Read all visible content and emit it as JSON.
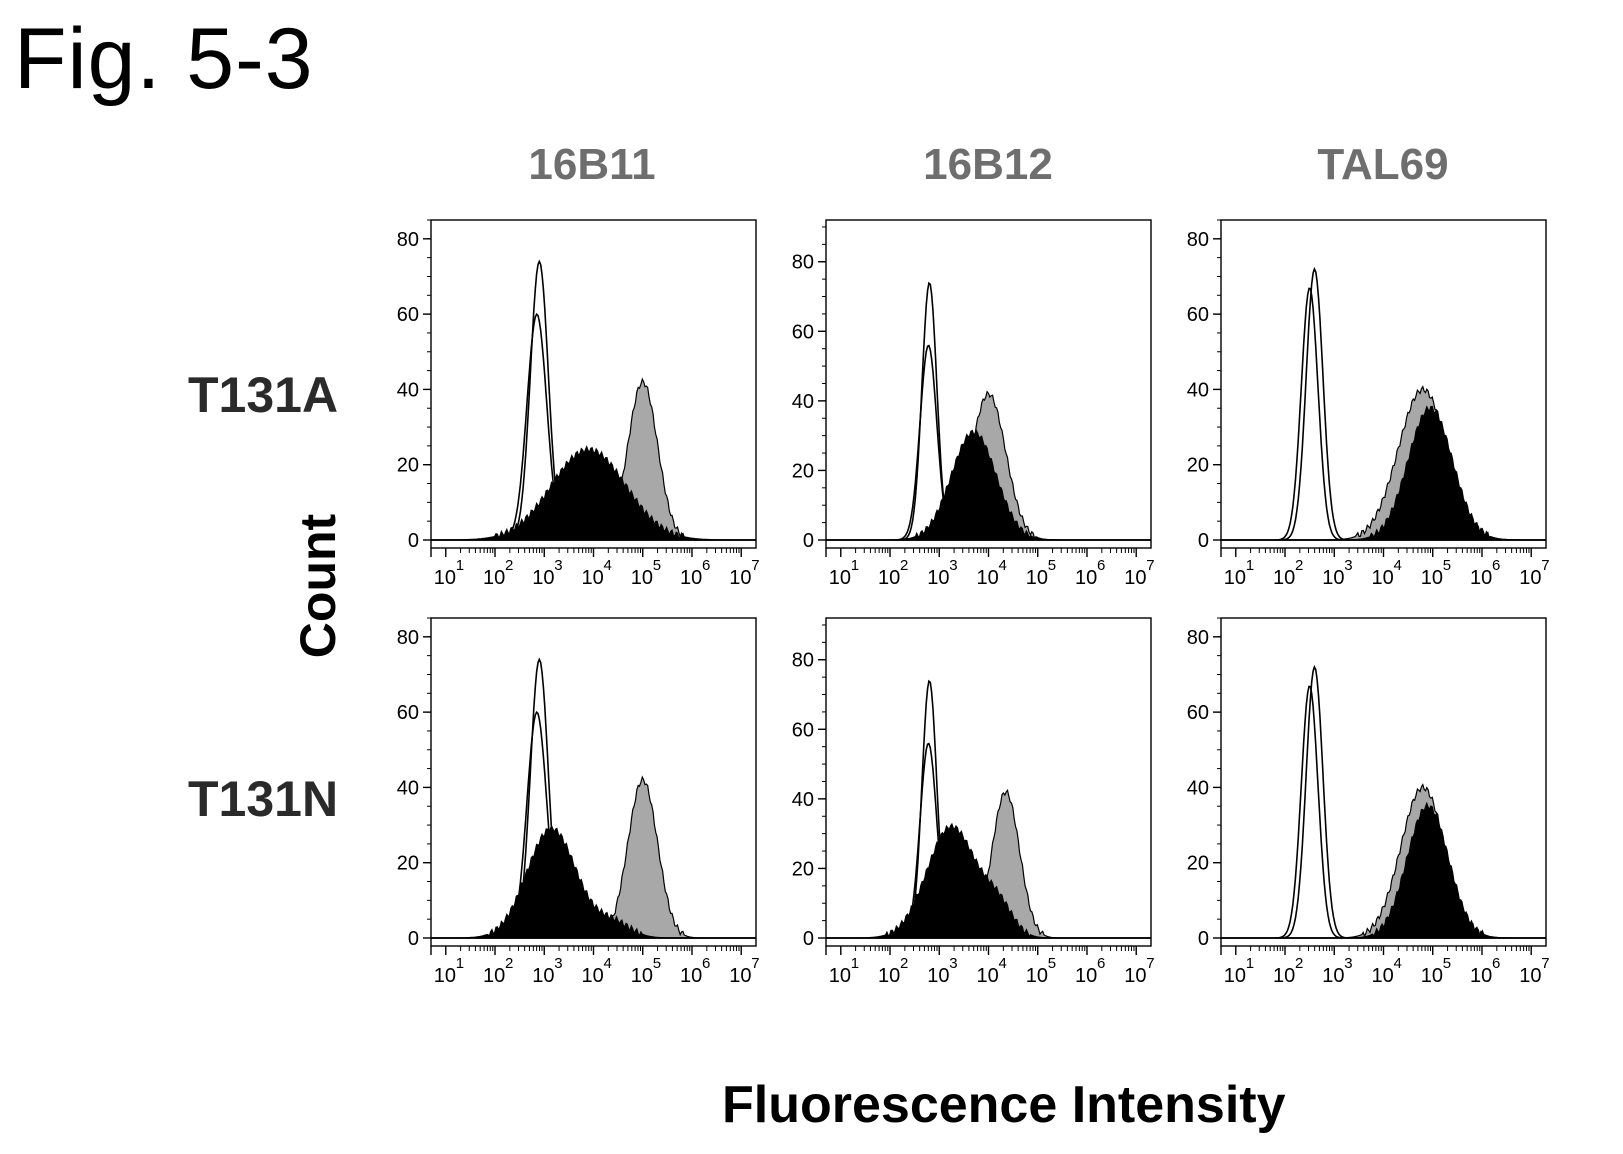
{
  "figure": {
    "title": "Fig. 5-3",
    "x_axis_title": "Fluorescence Intensity",
    "y_axis_title": "Count",
    "column_labels": [
      "16B11",
      "16B12",
      "TAL69"
    ],
    "row_labels": [
      "T131A",
      "T131N"
    ]
  },
  "colors": {
    "outline": "#000000",
    "gray_fill": "#a8a8a8",
    "black_fill": "#000000",
    "header_gray": "#6e6e6e"
  },
  "chart_data": [
    {
      "type": "area",
      "column": "16B11",
      "row": "T131A",
      "xscale": "log",
      "xlim_log10": [
        0.7,
        7.3
      ],
      "ylim": [
        0,
        85
      ],
      "xtick_exponents": [
        "1",
        "2",
        "3",
        "4",
        "5",
        "6",
        "7"
      ],
      "ytick_labels": [
        "0",
        "20",
        "40",
        "60",
        "80"
      ],
      "series": [
        {
          "fill": "none",
          "peaks": [
            [
              2.9,
              74,
              0.18
            ]
          ]
        },
        {
          "fill": "none",
          "peaks": [
            [
              2.85,
              60,
              0.2
            ]
          ]
        },
        {
          "fill": "gray",
          "peaks": [
            [
              5.0,
              42,
              0.3
            ]
          ]
        },
        {
          "fill": "black",
          "peaks": [
            [
              3.9,
              24,
              0.75
            ]
          ]
        }
      ]
    },
    {
      "type": "area",
      "column": "16B12",
      "row": "T131A",
      "xscale": "log",
      "xlim_log10": [
        0.7,
        7.3
      ],
      "ylim": [
        0,
        92
      ],
      "xtick_exponents": [
        "1",
        "2",
        "3",
        "4",
        "5",
        "6",
        "7"
      ],
      "ytick_labels": [
        "0",
        "20",
        "40",
        "60",
        "80"
      ],
      "series": [
        {
          "fill": "none",
          "peaks": [
            [
              2.8,
              74,
              0.15
            ]
          ]
        },
        {
          "fill": "none",
          "peaks": [
            [
              2.78,
              56,
              0.17
            ]
          ]
        },
        {
          "fill": "gray",
          "peaks": [
            [
              4.0,
              42,
              0.35
            ]
          ]
        },
        {
          "fill": "black",
          "peaks": [
            [
              3.7,
              31,
              0.45
            ]
          ]
        }
      ]
    },
    {
      "type": "area",
      "column": "TAL69",
      "row": "T131A",
      "xscale": "log",
      "xlim_log10": [
        0.7,
        7.3
      ],
      "ylim": [
        0,
        85
      ],
      "xtick_exponents": [
        "1",
        "2",
        "3",
        "4",
        "5",
        "6",
        "7"
      ],
      "ytick_labels": [
        "0",
        "20",
        "40",
        "60",
        "80"
      ],
      "series": [
        {
          "fill": "none",
          "peaks": [
            [
              2.6,
              72,
              0.17
            ]
          ]
        },
        {
          "fill": "none",
          "peaks": [
            [
              2.5,
              67,
              0.17
            ]
          ]
        },
        {
          "fill": "gray",
          "peaks": [
            [
              4.8,
              40,
              0.5
            ]
          ]
        },
        {
          "fill": "black",
          "peaks": [
            [
              4.95,
              35,
              0.45
            ]
          ]
        }
      ]
    },
    {
      "type": "area",
      "column": "16B11",
      "row": "T131N",
      "xscale": "log",
      "xlim_log10": [
        0.7,
        7.3
      ],
      "ylim": [
        0,
        85
      ],
      "xtick_exponents": [
        "1",
        "2",
        "3",
        "4",
        "5",
        "6",
        "7"
      ],
      "ytick_labels": [
        "0",
        "20",
        "40",
        "60",
        "80"
      ],
      "series": [
        {
          "fill": "none",
          "peaks": [
            [
              2.9,
              74,
              0.18
            ]
          ]
        },
        {
          "fill": "none",
          "peaks": [
            [
              2.85,
              60,
              0.2
            ]
          ]
        },
        {
          "fill": "gray",
          "peaks": [
            [
              5.0,
              42,
              0.3
            ]
          ]
        },
        {
          "fill": "black",
          "peaks": [
            [
              3.15,
              29,
              0.5
            ],
            [
              4.4,
              4,
              0.35
            ]
          ]
        }
      ]
    },
    {
      "type": "area",
      "column": "16B12",
      "row": "T131N",
      "xscale": "log",
      "xlim_log10": [
        0.7,
        7.3
      ],
      "ylim": [
        0,
        92
      ],
      "xtick_exponents": [
        "1",
        "2",
        "3",
        "4",
        "5",
        "6",
        "7"
      ],
      "ytick_labels": [
        "0",
        "20",
        "40",
        "60",
        "80"
      ],
      "series": [
        {
          "fill": "none",
          "peaks": [
            [
              2.8,
              74,
              0.15
            ]
          ]
        },
        {
          "fill": "none",
          "peaks": [
            [
              2.78,
              56,
              0.17
            ]
          ]
        },
        {
          "fill": "gray",
          "peaks": [
            [
              4.35,
              42,
              0.28
            ]
          ]
        },
        {
          "fill": "black",
          "peaks": [
            [
              3.25,
              32,
              0.5
            ],
            [
              4.2,
              8,
              0.3
            ]
          ]
        }
      ]
    },
    {
      "type": "area",
      "column": "TAL69",
      "row": "T131N",
      "xscale": "log",
      "xlim_log10": [
        0.7,
        7.3
      ],
      "ylim": [
        0,
        85
      ],
      "xtick_exponents": [
        "1",
        "2",
        "3",
        "4",
        "5",
        "6",
        "7"
      ],
      "ytick_labels": [
        "0",
        "20",
        "40",
        "60",
        "80"
      ],
      "series": [
        {
          "fill": "none",
          "peaks": [
            [
              2.6,
              72,
              0.17
            ]
          ]
        },
        {
          "fill": "none",
          "peaks": [
            [
              2.5,
              67,
              0.17
            ]
          ]
        },
        {
          "fill": "gray",
          "peaks": [
            [
              4.8,
              40,
              0.45
            ]
          ]
        },
        {
          "fill": "black",
          "peaks": [
            [
              4.9,
              35,
              0.42
            ]
          ]
        }
      ]
    }
  ]
}
